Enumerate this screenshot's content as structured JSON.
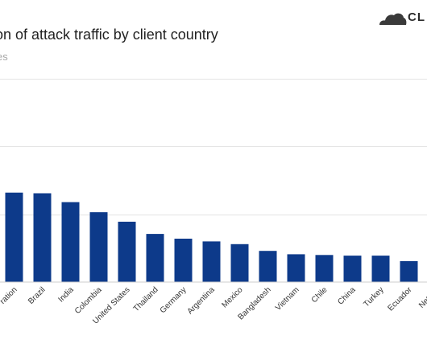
{
  "header": {
    "title": "on of attack traffic by client country",
    "subtitle": "es"
  },
  "logo": {
    "text": "CL",
    "icon": "cloud-icon"
  },
  "colors": {
    "bar": "#0d3a8a",
    "grid": "#e3e3e3",
    "logo": "#3a3a3a"
  },
  "chart_data": {
    "type": "bar",
    "title": "on of attack traffic by client country",
    "subtitle": "es",
    "categories": [
      "ration",
      "Brazil",
      "India",
      "Colombia",
      "United States",
      "Thailand",
      "Germany",
      "Argentina",
      "Mexico",
      "Bangladesh",
      "Vietnam",
      "Chile",
      "China",
      "Turkey",
      "Ecuador",
      "Netherl"
    ],
    "values": [
      1.32,
      1.31,
      1.18,
      1.03,
      0.89,
      0.71,
      0.64,
      0.6,
      0.56,
      0.46,
      0.41,
      0.4,
      0.39,
      0.39,
      0.31,
      0.27
    ],
    "ylim": [
      0,
      3
    ],
    "grid": true,
    "xlabel": "",
    "ylabel": ""
  }
}
